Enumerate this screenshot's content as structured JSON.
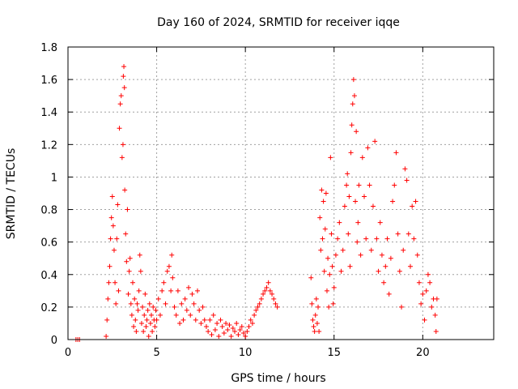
{
  "chart_data": {
    "type": "scatter",
    "title": "Day 160 of 2024, SRMTID for receiver iqqe",
    "xlabel": "GPS time / hours",
    "ylabel": "SRMTID / TECUs",
    "xlim": [
      0,
      24
    ],
    "ylim": [
      0,
      1.8
    ],
    "xticks": [
      0,
      5,
      10,
      15,
      20
    ],
    "yticks": [
      0,
      0.2,
      0.4,
      0.6,
      0.8,
      1,
      1.2,
      1.4,
      1.6,
      1.8
    ],
    "xtick_labels": [
      "0",
      "5",
      "10",
      "15",
      "20"
    ],
    "ytick_labels": [
      "0",
      "0.2",
      "0.4",
      "0.6",
      "0.8",
      "1",
      "1.2",
      "1.4",
      "1.6",
      "1.8"
    ],
    "grid": true,
    "marker": "+",
    "color": "#ff0000",
    "series": [
      {
        "name": "SRMTID",
        "points": [
          [
            0.45,
            0.0
          ],
          [
            0.55,
            0.0
          ],
          [
            0.65,
            0.0
          ],
          [
            2.15,
            0.02
          ],
          [
            2.2,
            0.12
          ],
          [
            2.25,
            0.25
          ],
          [
            2.3,
            0.35
          ],
          [
            2.35,
            0.45
          ],
          [
            2.4,
            0.62
          ],
          [
            2.45,
            0.75
          ],
          [
            2.5,
            0.88
          ],
          [
            2.55,
            0.7
          ],
          [
            2.6,
            0.55
          ],
          [
            2.65,
            0.35
          ],
          [
            2.7,
            0.22
          ],
          [
            2.75,
            0.62
          ],
          [
            2.8,
            0.83
          ],
          [
            2.85,
            0.3
          ],
          [
            2.9,
            1.3
          ],
          [
            2.95,
            1.45
          ],
          [
            3.0,
            1.5
          ],
          [
            3.05,
            1.12
          ],
          [
            3.1,
            1.2
          ],
          [
            3.12,
            1.62
          ],
          [
            3.15,
            1.68
          ],
          [
            3.18,
            1.55
          ],
          [
            3.2,
            0.92
          ],
          [
            3.25,
            0.65
          ],
          [
            3.3,
            0.48
          ],
          [
            3.35,
            0.8
          ],
          [
            3.4,
            0.28
          ],
          [
            3.45,
            0.42
          ],
          [
            3.5,
            0.5
          ],
          [
            3.55,
            0.22
          ],
          [
            3.6,
            0.15
          ],
          [
            3.65,
            0.35
          ],
          [
            3.7,
            0.08
          ],
          [
            3.75,
            0.25
          ],
          [
            3.8,
            0.12
          ],
          [
            3.85,
            0.05
          ],
          [
            3.9,
            0.22
          ],
          [
            3.95,
            0.18
          ],
          [
            4.0,
            0.3
          ],
          [
            4.05,
            0.52
          ],
          [
            4.1,
            0.42
          ],
          [
            4.15,
            0.1
          ],
          [
            4.2,
            0.2
          ],
          [
            4.25,
            0.05
          ],
          [
            4.3,
            0.15
          ],
          [
            4.35,
            0.28
          ],
          [
            4.4,
            0.08
          ],
          [
            4.45,
            0.12
          ],
          [
            4.5,
            0.18
          ],
          [
            4.55,
            0.02
          ],
          [
            4.6,
            0.22
          ],
          [
            4.65,
            0.1
          ],
          [
            4.7,
            0.15
          ],
          [
            4.75,
            0.05
          ],
          [
            4.8,
            0.2
          ],
          [
            4.85,
            0.12
          ],
          [
            4.9,
            0.08
          ],
          [
            4.95,
            0.18
          ],
          [
            5.0,
            0.12
          ],
          [
            5.1,
            0.25
          ],
          [
            5.2,
            0.15
          ],
          [
            5.3,
            0.3
          ],
          [
            5.4,
            0.35
          ],
          [
            5.5,
            0.22
          ],
          [
            5.6,
            0.42
          ],
          [
            5.7,
            0.45
          ],
          [
            5.8,
            0.3
          ],
          [
            5.85,
            0.52
          ],
          [
            5.9,
            0.38
          ],
          [
            6.0,
            0.2
          ],
          [
            6.1,
            0.15
          ],
          [
            6.2,
            0.3
          ],
          [
            6.3,
            0.1
          ],
          [
            6.4,
            0.22
          ],
          [
            6.5,
            0.12
          ],
          [
            6.6,
            0.25
          ],
          [
            6.7,
            0.18
          ],
          [
            6.8,
            0.32
          ],
          [
            6.9,
            0.15
          ],
          [
            7.0,
            0.28
          ],
          [
            7.1,
            0.22
          ],
          [
            7.2,
            0.12
          ],
          [
            7.3,
            0.3
          ],
          [
            7.4,
            0.18
          ],
          [
            7.5,
            0.1
          ],
          [
            7.6,
            0.2
          ],
          [
            7.7,
            0.12
          ],
          [
            7.8,
            0.08
          ],
          [
            7.9,
            0.05
          ],
          [
            8.0,
            0.12
          ],
          [
            8.1,
            0.03
          ],
          [
            8.2,
            0.15
          ],
          [
            8.3,
            0.06
          ],
          [
            8.4,
            0.1
          ],
          [
            8.5,
            0.02
          ],
          [
            8.6,
            0.12
          ],
          [
            8.7,
            0.08
          ],
          [
            8.8,
            0.04
          ],
          [
            8.9,
            0.1
          ],
          [
            9.0,
            0.06
          ],
          [
            9.1,
            0.09
          ],
          [
            9.2,
            0.02
          ],
          [
            9.3,
            0.07
          ],
          [
            9.4,
            0.05
          ],
          [
            9.5,
            0.1
          ],
          [
            9.6,
            0.03
          ],
          [
            9.7,
            0.06
          ],
          [
            9.8,
            0.08
          ],
          [
            9.9,
            0.04
          ],
          [
            10.0,
            0.02
          ],
          [
            10.1,
            0.05
          ],
          [
            10.2,
            0.08
          ],
          [
            10.3,
            0.12
          ],
          [
            10.4,
            0.1
          ],
          [
            10.5,
            0.15
          ],
          [
            10.6,
            0.18
          ],
          [
            10.7,
            0.2
          ],
          [
            10.8,
            0.22
          ],
          [
            10.9,
            0.25
          ],
          [
            11.0,
            0.28
          ],
          [
            11.1,
            0.3
          ],
          [
            11.2,
            0.32
          ],
          [
            11.3,
            0.35
          ],
          [
            11.4,
            0.3
          ],
          [
            11.5,
            0.28
          ],
          [
            11.6,
            0.25
          ],
          [
            11.7,
            0.22
          ],
          [
            11.8,
            0.2
          ],
          [
            13.7,
            0.38
          ],
          [
            13.75,
            0.22
          ],
          [
            13.8,
            0.12
          ],
          [
            13.85,
            0.08
          ],
          [
            13.9,
            0.05
          ],
          [
            13.95,
            0.15
          ],
          [
            14.0,
            0.25
          ],
          [
            14.05,
            0.1
          ],
          [
            14.1,
            0.2
          ],
          [
            14.15,
            0.05
          ],
          [
            14.2,
            0.75
          ],
          [
            14.25,
            0.55
          ],
          [
            14.3,
            0.92
          ],
          [
            14.35,
            0.62
          ],
          [
            14.4,
            0.85
          ],
          [
            14.45,
            0.42
          ],
          [
            14.5,
            0.68
          ],
          [
            14.55,
            0.9
          ],
          [
            14.6,
            0.3
          ],
          [
            14.65,
            0.5
          ],
          [
            14.7,
            0.2
          ],
          [
            14.75,
            0.4
          ],
          [
            14.8,
            1.12
          ],
          [
            14.85,
            0.65
          ],
          [
            14.9,
            0.45
          ],
          [
            14.95,
            0.22
          ],
          [
            15.0,
            0.32
          ],
          [
            15.1,
            0.52
          ],
          [
            15.2,
            0.62
          ],
          [
            15.3,
            0.72
          ],
          [
            15.4,
            0.42
          ],
          [
            15.5,
            0.55
          ],
          [
            15.6,
            0.82
          ],
          [
            15.7,
            0.95
          ],
          [
            15.75,
            1.02
          ],
          [
            15.8,
            0.65
          ],
          [
            15.85,
            0.88
          ],
          [
            15.9,
            0.45
          ],
          [
            15.95,
            1.15
          ],
          [
            16.0,
            1.32
          ],
          [
            16.05,
            1.45
          ],
          [
            16.1,
            1.6
          ],
          [
            16.15,
            1.5
          ],
          [
            16.2,
            0.85
          ],
          [
            16.25,
            1.28
          ],
          [
            16.3,
            0.6
          ],
          [
            16.35,
            0.72
          ],
          [
            16.4,
            0.95
          ],
          [
            16.5,
            0.52
          ],
          [
            16.6,
            1.12
          ],
          [
            16.7,
            0.88
          ],
          [
            16.8,
            0.62
          ],
          [
            16.9,
            1.18
          ],
          [
            17.0,
            0.95
          ],
          [
            17.1,
            0.55
          ],
          [
            17.2,
            0.82
          ],
          [
            17.3,
            1.22
          ],
          [
            17.4,
            0.62
          ],
          [
            17.5,
            0.42
          ],
          [
            17.6,
            0.72
          ],
          [
            17.7,
            0.52
          ],
          [
            17.8,
            0.35
          ],
          [
            17.9,
            0.45
          ],
          [
            18.0,
            0.62
          ],
          [
            18.1,
            0.28
          ],
          [
            18.2,
            0.5
          ],
          [
            18.3,
            0.85
          ],
          [
            18.4,
            0.95
          ],
          [
            18.5,
            1.15
          ],
          [
            18.6,
            0.65
          ],
          [
            18.7,
            0.42
          ],
          [
            18.8,
            0.2
          ],
          [
            18.9,
            0.55
          ],
          [
            19.0,
            1.05
          ],
          [
            19.1,
            0.98
          ],
          [
            19.2,
            0.65
          ],
          [
            19.3,
            0.45
          ],
          [
            19.4,
            0.82
          ],
          [
            19.5,
            0.62
          ],
          [
            19.6,
            0.85
          ],
          [
            19.7,
            0.52
          ],
          [
            19.8,
            0.35
          ],
          [
            19.9,
            0.22
          ],
          [
            20.0,
            0.28
          ],
          [
            20.1,
            0.12
          ],
          [
            20.2,
            0.3
          ],
          [
            20.3,
            0.4
          ],
          [
            20.4,
            0.35
          ],
          [
            20.5,
            0.2
          ],
          [
            20.6,
            0.25
          ],
          [
            20.7,
            0.15
          ],
          [
            20.75,
            0.05
          ],
          [
            20.8,
            0.25
          ]
        ]
      }
    ]
  }
}
